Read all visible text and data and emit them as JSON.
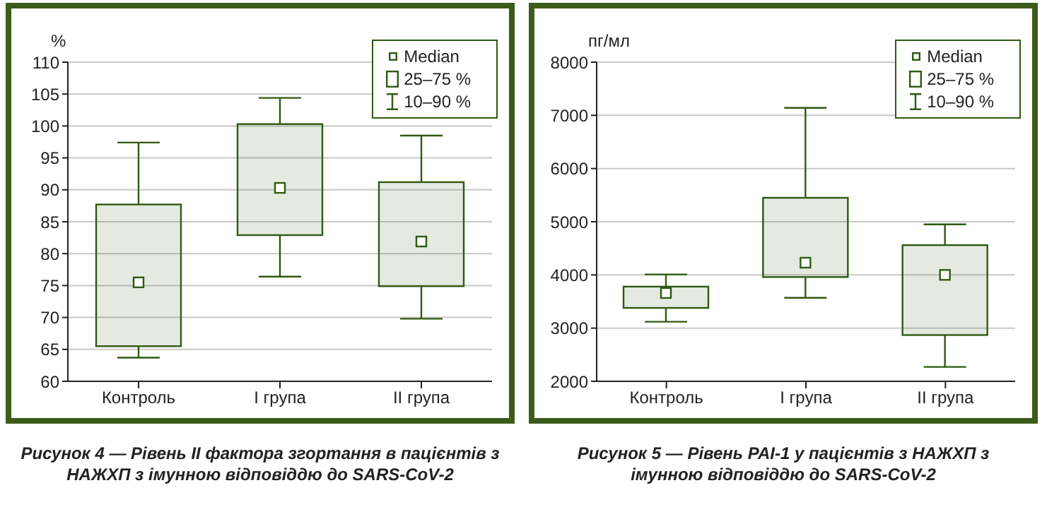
{
  "chart_data": [
    {
      "type": "box",
      "title": "Рисунок 4 — Рівень II фактора згортання в пацієнтів з НАЖХП з імунною відповіддю до SARS-CoV-2",
      "ylabel": "%",
      "categories": [
        "Контроль",
        "I група",
        "II група"
      ],
      "color": "#2f5a12",
      "boxes": [
        {
          "low": 63.7,
          "q1": 65.5,
          "median": 75.5,
          "q3": 87.7,
          "high": 97.4
        },
        {
          "low": 76.4,
          "q1": 82.9,
          "median": 90.3,
          "q3": 100.3,
          "high": 104.4
        },
        {
          "low": 69.8,
          "q1": 74.9,
          "median": 81.9,
          "q3": 91.2,
          "high": 98.5
        }
      ],
      "ylim": [
        60,
        110
      ],
      "yticks": [
        60,
        65,
        70,
        75,
        80,
        85,
        90,
        95,
        100,
        105,
        110
      ],
      "grid": "y",
      "annotations": [
        "Median",
        "25–75 %",
        "10–90 %"
      ]
    },
    {
      "type": "box",
      "title": "Рисунок 5 — Рівень PAI-1 у пацієнтів з НАЖХП з імунною відповіддю до SARS-CoV-2",
      "ylabel": "пг/мл",
      "categories": [
        "Контроль",
        "I група",
        "II група"
      ],
      "color": "#2f5a12",
      "boxes": [
        {
          "low": 3120,
          "q1": 3380,
          "median": 3660,
          "q3": 3780,
          "high": 4010
        },
        {
          "low": 3570,
          "q1": 3960,
          "median": 4230,
          "q3": 5450,
          "high": 7140
        },
        {
          "low": 2270,
          "q1": 2870,
          "median": 4000,
          "q3": 4560,
          "high": 4950
        }
      ],
      "ylim": [
        2000,
        8000
      ],
      "yticks": [
        2000,
        3000,
        4000,
        5000,
        6000,
        7000,
        8000
      ],
      "grid": "y",
      "annotations": [
        "Median",
        "25–75 %",
        "10–90 %"
      ]
    }
  ]
}
